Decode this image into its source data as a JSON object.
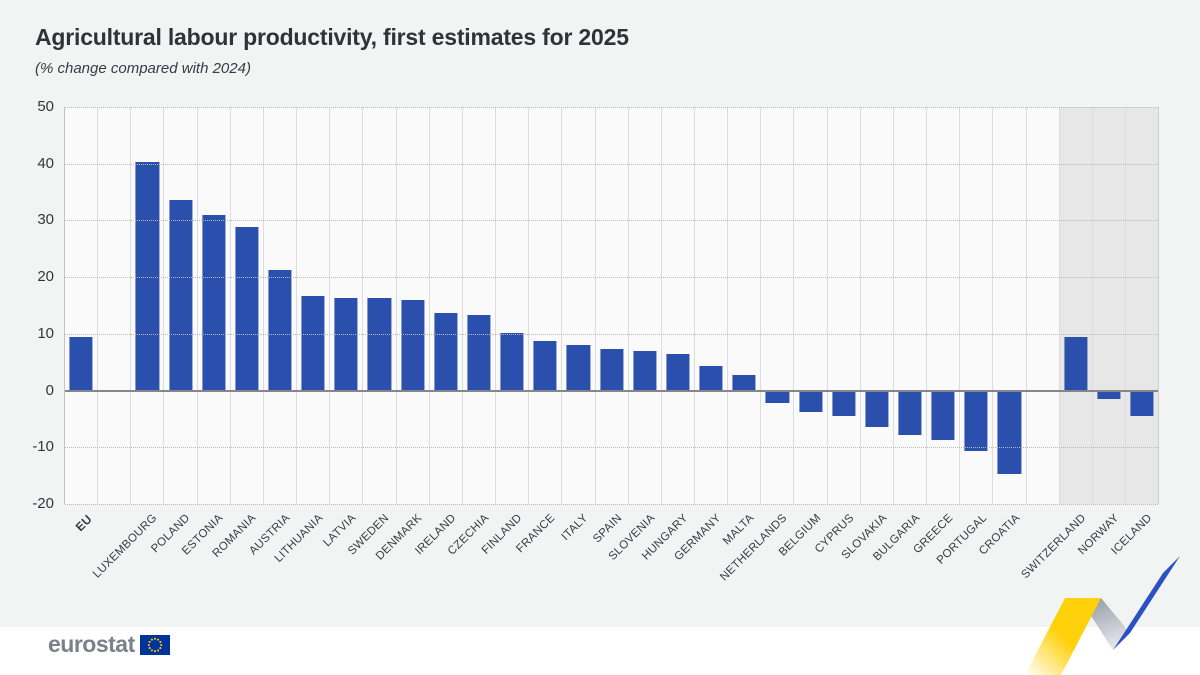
{
  "page": {
    "title": "Agricultural labour productivity, first estimates for 2025",
    "subtitle": "(% change compared with 2024)"
  },
  "footer": {
    "brand": "eurostat"
  },
  "colors": {
    "bar": "#2b4fad",
    "panel_bg": "#f2f3f3",
    "plot_bg": "#fafafa",
    "efta_band": "#e7e7e7",
    "zero_line": "#85868a",
    "flag_blue": "#003399",
    "flag_stars": "#ffcc00",
    "ribbon_yellow": "#ffd10a",
    "ribbon_blue": "#2b51c4"
  },
  "chart_data": {
    "type": "bar",
    "title": "Agricultural labour productivity, first estimates for 2025",
    "subtitle": "(% change compared with 2024)",
    "ylabel": "% change compared with 2024",
    "ylim": [
      -20,
      50
    ],
    "yticks": [
      50,
      40,
      30,
      20,
      10,
      0,
      -10,
      -20
    ],
    "grid": "horizontal dotted, vertical solid",
    "legend": "none",
    "categories": [
      "EU",
      "LUXEMBOURG",
      "POLAND",
      "ESTONIA",
      "ROMANIA",
      "AUSTRIA",
      "LITHUANIA",
      "LATVIA",
      "SWEDEN",
      "DENMARK",
      "IRELAND",
      "CZECHIA",
      "FINLAND",
      "FRANCE",
      "ITALY",
      "SPAIN",
      "SLOVENIA",
      "HUNGARY",
      "GERMANY",
      "MALTA",
      "NETHERLANDS",
      "BELGIUM",
      "CYPRUS",
      "SLOVAKIA",
      "BULGARIA",
      "GREECE",
      "PORTUGAL",
      "CROATIA",
      "SWITZERLAND",
      "NORWAY",
      "ICELAND"
    ],
    "values": [
      9.5,
      40.3,
      33.6,
      31.0,
      28.8,
      21.3,
      16.7,
      16.4,
      16.3,
      15.9,
      13.7,
      13.4,
      10.2,
      8.7,
      8.1,
      7.3,
      7.0,
      6.5,
      4.3,
      2.8,
      -2.2,
      -3.7,
      -4.4,
      -6.4,
      -7.9,
      -8.7,
      -10.6,
      -14.8,
      9.4,
      -1.5,
      -4.4
    ],
    "bold_categories": [
      "EU"
    ],
    "spacer_after": [
      "EU",
      "CROATIA"
    ],
    "highlight_band": {
      "categories": [
        "SWITZERLAND",
        "NORWAY",
        "ICELAND"
      ],
      "color": "#e7e7e7"
    }
  }
}
